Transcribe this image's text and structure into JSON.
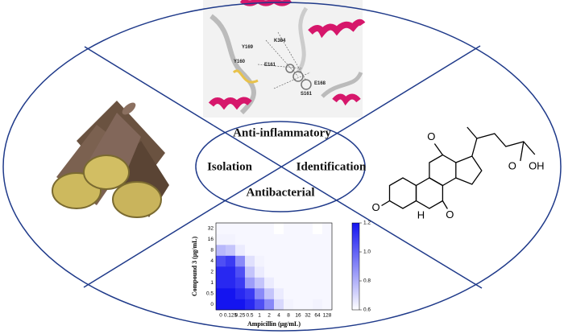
{
  "labels": {
    "top": "Anti-inflammatory",
    "left": "Isolation",
    "right": "Identification",
    "bottom": "Antibacterial"
  },
  "protein_labels": [
    "K384",
    "Y169",
    "Y160",
    "E161",
    "S161",
    "E168"
  ],
  "structure_labels": [
    "O",
    "O",
    "O",
    "H",
    "O",
    "OH"
  ],
  "chart_data": {
    "type": "heatmap",
    "x_label": "Ampicillin (μg/mL)",
    "y_label": "Compound 3 (μg/mL)",
    "x": [
      0,
      0.125,
      0.25,
      0.5,
      1,
      2,
      4,
      8,
      16,
      32,
      64,
      128
    ],
    "y": [
      0,
      0.5,
      1,
      2,
      4,
      8,
      16,
      32
    ],
    "values": [
      [
        1.2,
        1.2,
        1.2,
        1.15,
        1.05,
        0.9,
        0.7,
        0.63,
        0.62,
        0.62,
        0.63,
        0.62
      ],
      [
        1.2,
        1.2,
        1.15,
        1.1,
        0.9,
        0.75,
        0.65,
        0.62,
        0.62,
        0.62,
        0.62,
        0.62
      ],
      [
        1.15,
        1.15,
        1.1,
        0.85,
        0.75,
        0.65,
        0.62,
        0.62,
        0.62,
        0.62,
        0.62,
        0.62
      ],
      [
        1.15,
        1.15,
        1.05,
        0.75,
        0.65,
        0.62,
        0.62,
        0.62,
        0.62,
        0.62,
        0.62,
        0.62
      ],
      [
        1.05,
        1.1,
        0.9,
        0.68,
        0.63,
        0.62,
        0.62,
        0.62,
        0.62,
        0.62,
        0.62,
        0.62
      ],
      [
        0.78,
        0.75,
        0.65,
        0.62,
        0.62,
        0.62,
        0.62,
        0.62,
        0.62,
        0.62,
        0.62,
        0.62
      ],
      [
        0.63,
        0.63,
        0.62,
        0.62,
        0.62,
        0.62,
        0.62,
        0.62,
        0.62,
        0.62,
        0.62,
        0.62
      ],
      [
        0.62,
        0.62,
        0.62,
        0.62,
        0.62,
        0.62,
        0.6,
        0.62,
        0.62,
        0.62,
        0.6,
        0.62
      ]
    ],
    "colors": [
      "#ffffff",
      "#1414f0"
    ],
    "clim": [
      0.6,
      1.2
    ],
    "cticks": [
      0.6,
      0.8,
      {
        "value": 1.0,
        "label": "1.0"
      },
      1.2
    ]
  }
}
